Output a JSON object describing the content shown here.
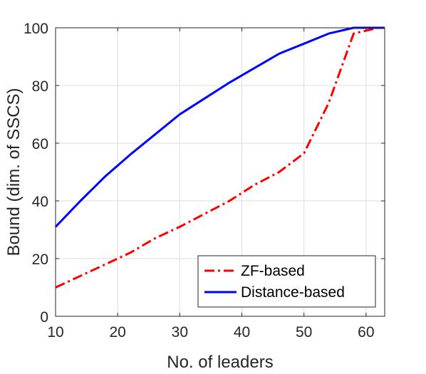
{
  "chart_data": {
    "type": "line",
    "xlabel": "No. of leaders",
    "ylabel": "Bound (dim. of SSCS)",
    "xlim": [
      10,
      63
    ],
    "ylim": [
      0,
      100
    ],
    "xticks": [
      10,
      20,
      30,
      40,
      50,
      60
    ],
    "yticks": [
      0,
      20,
      40,
      60,
      80,
      100
    ],
    "grid": true,
    "legend_position": "bottom-right",
    "series": [
      {
        "name": "ZF-based",
        "color": "#ff0000",
        "style": "dash-dot",
        "x": [
          10,
          14,
          18,
          22,
          26,
          30,
          34,
          38,
          42,
          46,
          50,
          54,
          58,
          62,
          63
        ],
        "y": [
          10,
          14,
          18,
          22,
          27,
          31,
          35.5,
          40,
          45.5,
          50,
          56.5,
          74,
          98,
          100,
          100
        ]
      },
      {
        "name": "Distance-based",
        "color": "#0000ff",
        "style": "solid",
        "x": [
          10,
          14,
          18,
          22,
          26,
          30,
          34,
          38,
          42,
          46,
          50,
          54,
          58,
          62,
          63
        ],
        "y": [
          31,
          40,
          48.5,
          56,
          63,
          70,
          75.5,
          81,
          86,
          91,
          94.5,
          98,
          100,
          100,
          100
        ]
      }
    ]
  }
}
